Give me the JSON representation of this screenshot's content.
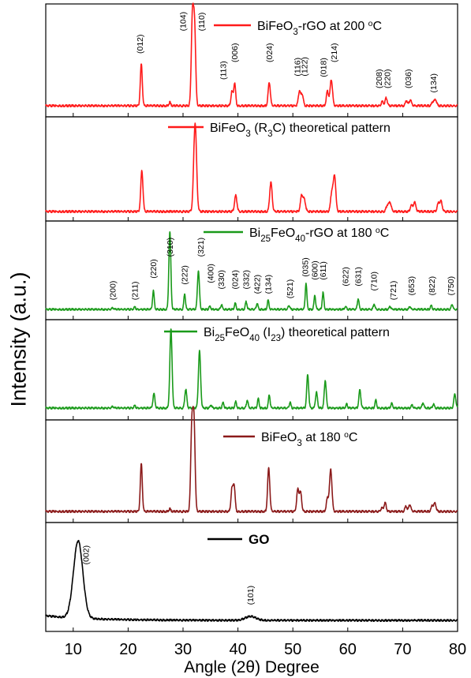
{
  "chart_data": {
    "type": "line",
    "ylabel": "Intensity (a.u.)",
    "xlabel": "Angle (2θ) Degree",
    "xlim": [
      5,
      80
    ],
    "xticks": [
      "10",
      "20",
      "30",
      "40",
      "50",
      "60",
      "70",
      "80"
    ],
    "panels": [
      {
        "legend": "BiFeO3-rGO  at 200 °C",
        "color": "#ff1a1a",
        "peaks": [
          {
            "x": 22.4,
            "h": 0.48,
            "w": 0.18
          },
          {
            "x": 27.6,
            "h": 0.04,
            "w": 0.15
          },
          {
            "x": 31.7,
            "h": 1.0,
            "w": 0.2
          },
          {
            "x": 32.1,
            "h": 0.9,
            "w": 0.2
          },
          {
            "x": 38.9,
            "h": 0.16,
            "w": 0.18
          },
          {
            "x": 39.4,
            "h": 0.26,
            "w": 0.18
          },
          {
            "x": 45.7,
            "h": 0.27,
            "w": 0.2
          },
          {
            "x": 51.2,
            "h": 0.17,
            "w": 0.2
          },
          {
            "x": 51.7,
            "h": 0.13,
            "w": 0.2
          },
          {
            "x": 56.3,
            "h": 0.17,
            "w": 0.2
          },
          {
            "x": 57.0,
            "h": 0.3,
            "w": 0.22
          },
          {
            "x": 66.3,
            "h": 0.05,
            "w": 0.2
          },
          {
            "x": 67.0,
            "h": 0.09,
            "w": 0.2
          },
          {
            "x": 70.7,
            "h": 0.06,
            "w": 0.2
          },
          {
            "x": 71.4,
            "h": 0.07,
            "w": 0.2
          },
          {
            "x": 75.5,
            "h": 0.05,
            "w": 0.2
          },
          {
            "x": 76.0,
            "h": 0.07,
            "w": 0.2
          }
        ],
        "annotations": [
          {
            "label": "(012)",
            "x": 22.2,
            "y": 0.6
          },
          {
            "label": "(104)",
            "x": 30.0,
            "y": 0.86
          },
          {
            "label": "(110)",
            "x": 33.4,
            "y": 0.86
          },
          {
            "label": "(113)",
            "x": 37.3,
            "y": 0.3
          },
          {
            "label": "(006)",
            "x": 39.4,
            "y": 0.5
          },
          {
            "label": "(024)",
            "x": 45.7,
            "y": 0.5
          },
          {
            "label": "(116)",
            "x": 50.8,
            "y": 0.34
          },
          {
            "label": "(122)",
            "x": 52.1,
            "y": 0.34
          },
          {
            "label": "(018)",
            "x": 55.6,
            "y": 0.33
          },
          {
            "label": "(214)",
            "x": 57.5,
            "y": 0.5
          },
          {
            "label": "(208)",
            "x": 65.7,
            "y": 0.2
          },
          {
            "label": "(220)",
            "x": 67.2,
            "y": 0.2
          },
          {
            "label": "(036)",
            "x": 71.0,
            "y": 0.2
          },
          {
            "label": "(134)",
            "x": 75.6,
            "y": 0.15
          }
        ]
      },
      {
        "legend": "BiFeO3 (R3C) theoretical pattern",
        "color": "#ff1a1a",
        "peaks": [
          {
            "x": 22.5,
            "h": 0.46,
            "w": 0.2
          },
          {
            "x": 32.2,
            "h": 1.0,
            "w": 0.26
          },
          {
            "x": 39.6,
            "h": 0.18,
            "w": 0.22
          },
          {
            "x": 46.0,
            "h": 0.33,
            "w": 0.22
          },
          {
            "x": 51.6,
            "h": 0.18,
            "w": 0.22
          },
          {
            "x": 52.1,
            "h": 0.13,
            "w": 0.22
          },
          {
            "x": 57.1,
            "h": 0.22,
            "w": 0.22
          },
          {
            "x": 57.6,
            "h": 0.4,
            "w": 0.22
          },
          {
            "x": 67.2,
            "h": 0.07,
            "w": 0.22
          },
          {
            "x": 67.7,
            "h": 0.1,
            "w": 0.22
          },
          {
            "x": 71.6,
            "h": 0.07,
            "w": 0.22
          },
          {
            "x": 72.2,
            "h": 0.1,
            "w": 0.22
          },
          {
            "x": 76.5,
            "h": 0.09,
            "w": 0.22
          },
          {
            "x": 77.0,
            "h": 0.11,
            "w": 0.22
          }
        ],
        "annotations": []
      },
      {
        "legend": "Bi25FeO40-rGO at 180 °C",
        "color": "#1a9a1a",
        "peaks": [
          {
            "x": 17.2,
            "h": 0.02,
            "w": 0.15
          },
          {
            "x": 21.2,
            "h": 0.03,
            "w": 0.15
          },
          {
            "x": 24.6,
            "h": 0.24,
            "w": 0.15
          },
          {
            "x": 27.6,
            "h": 1.0,
            "w": 0.18
          },
          {
            "x": 30.3,
            "h": 0.2,
            "w": 0.15
          },
          {
            "x": 32.8,
            "h": 0.5,
            "w": 0.18
          },
          {
            "x": 34.9,
            "h": 0.04,
            "w": 0.15
          },
          {
            "x": 37.0,
            "h": 0.06,
            "w": 0.15
          },
          {
            "x": 39.5,
            "h": 0.08,
            "w": 0.15
          },
          {
            "x": 41.5,
            "h": 0.1,
            "w": 0.15
          },
          {
            "x": 43.5,
            "h": 0.08,
            "w": 0.15
          },
          {
            "x": 45.5,
            "h": 0.12,
            "w": 0.15
          },
          {
            "x": 49.3,
            "h": 0.05,
            "w": 0.15
          },
          {
            "x": 52.4,
            "h": 0.34,
            "w": 0.15
          },
          {
            "x": 54.0,
            "h": 0.18,
            "w": 0.15
          },
          {
            "x": 55.5,
            "h": 0.22,
            "w": 0.15
          },
          {
            "x": 59.6,
            "h": 0.04,
            "w": 0.15
          },
          {
            "x": 61.9,
            "h": 0.14,
            "w": 0.15
          },
          {
            "x": 64.8,
            "h": 0.07,
            "w": 0.15
          },
          {
            "x": 67.7,
            "h": 0.04,
            "w": 0.15
          },
          {
            "x": 71.3,
            "h": 0.04,
            "w": 0.15
          },
          {
            "x": 75.2,
            "h": 0.05,
            "w": 0.15
          },
          {
            "x": 79.0,
            "h": 0.07,
            "w": 0.15
          }
        ],
        "annotations": [
          {
            "label": "(200)",
            "x": 17.2,
            "y": 0.12
          },
          {
            "label": "(211)",
            "x": 21.2,
            "y": 0.12
          },
          {
            "label": "(220)",
            "x": 24.6,
            "y": 0.4
          },
          {
            "label": "(310)",
            "x": 27.6,
            "y": 0.68
          },
          {
            "label": "(222)",
            "x": 30.3,
            "y": 0.32
          },
          {
            "label": "(321)",
            "x": 33.2,
            "y": 0.68
          },
          {
            "label": "(400)",
            "x": 35.0,
            "y": 0.34
          },
          {
            "label": "(330)",
            "x": 37.0,
            "y": 0.26
          },
          {
            "label": "(024)",
            "x": 39.5,
            "y": 0.26
          },
          {
            "label": "(332)",
            "x": 41.5,
            "y": 0.26
          },
          {
            "label": "(422)",
            "x": 43.5,
            "y": 0.2
          },
          {
            "label": "(134)",
            "x": 45.5,
            "y": 0.2
          },
          {
            "label": "(521)",
            "x": 49.5,
            "y": 0.14
          },
          {
            "label": "(035)",
            "x": 52.3,
            "y": 0.42
          },
          {
            "label": "(600)",
            "x": 54.0,
            "y": 0.38
          },
          {
            "label": "(611)",
            "x": 55.5,
            "y": 0.38
          },
          {
            "label": "(622)",
            "x": 59.6,
            "y": 0.3
          },
          {
            "label": "(631)",
            "x": 61.9,
            "y": 0.3
          },
          {
            "label": "(710)",
            "x": 64.8,
            "y": 0.24
          },
          {
            "label": "(721)",
            "x": 68.3,
            "y": 0.12
          },
          {
            "label": "(653)",
            "x": 71.6,
            "y": 0.18
          },
          {
            "label": "(822)",
            "x": 75.3,
            "y": 0.18
          },
          {
            "label": "(750)",
            "x": 78.8,
            "y": 0.18
          }
        ]
      },
      {
        "legend": "Bi25FeO40 (I23) theoretical pattern",
        "color": "#1a9a1a",
        "peaks": [
          {
            "x": 17.2,
            "h": 0.02,
            "w": 0.15
          },
          {
            "x": 21.2,
            "h": 0.03,
            "w": 0.15
          },
          {
            "x": 24.7,
            "h": 0.18,
            "w": 0.18
          },
          {
            "x": 27.8,
            "h": 1.0,
            "w": 0.2
          },
          {
            "x": 30.5,
            "h": 0.24,
            "w": 0.18
          },
          {
            "x": 33.0,
            "h": 0.72,
            "w": 0.2
          },
          {
            "x": 35.1,
            "h": 0.04,
            "w": 0.15
          },
          {
            "x": 37.3,
            "h": 0.07,
            "w": 0.15
          },
          {
            "x": 39.6,
            "h": 0.08,
            "w": 0.15
          },
          {
            "x": 41.7,
            "h": 0.1,
            "w": 0.15
          },
          {
            "x": 43.7,
            "h": 0.12,
            "w": 0.15
          },
          {
            "x": 45.7,
            "h": 0.17,
            "w": 0.15
          },
          {
            "x": 49.5,
            "h": 0.07,
            "w": 0.15
          },
          {
            "x": 52.7,
            "h": 0.42,
            "w": 0.18
          },
          {
            "x": 54.3,
            "h": 0.2,
            "w": 0.18
          },
          {
            "x": 55.9,
            "h": 0.35,
            "w": 0.18
          },
          {
            "x": 59.8,
            "h": 0.05,
            "w": 0.15
          },
          {
            "x": 62.2,
            "h": 0.23,
            "w": 0.18
          },
          {
            "x": 65.1,
            "h": 0.1,
            "w": 0.15
          },
          {
            "x": 68.0,
            "h": 0.06,
            "w": 0.15
          },
          {
            "x": 71.7,
            "h": 0.04,
            "w": 0.15
          },
          {
            "x": 73.7,
            "h": 0.07,
            "w": 0.15
          },
          {
            "x": 75.6,
            "h": 0.05,
            "w": 0.15
          },
          {
            "x": 79.5,
            "h": 0.18,
            "w": 0.18
          }
        ],
        "annotations": []
      },
      {
        "legend": "BiFeO3  at  180 °C",
        "color": "#8b1a1a",
        "peaks": [
          {
            "x": 22.4,
            "h": 0.55,
            "w": 0.18
          },
          {
            "x": 27.6,
            "h": 0.03,
            "w": 0.15
          },
          {
            "x": 31.6,
            "h": 0.97,
            "w": 0.2
          },
          {
            "x": 32.0,
            "h": 1.0,
            "w": 0.2
          },
          {
            "x": 38.9,
            "h": 0.25,
            "w": 0.18
          },
          {
            "x": 39.3,
            "h": 0.3,
            "w": 0.18
          },
          {
            "x": 45.6,
            "h": 0.5,
            "w": 0.2
          },
          {
            "x": 50.9,
            "h": 0.25,
            "w": 0.2
          },
          {
            "x": 51.4,
            "h": 0.22,
            "w": 0.2
          },
          {
            "x": 56.3,
            "h": 0.15,
            "w": 0.2
          },
          {
            "x": 56.9,
            "h": 0.48,
            "w": 0.22
          },
          {
            "x": 66.2,
            "h": 0.04,
            "w": 0.2
          },
          {
            "x": 66.8,
            "h": 0.1,
            "w": 0.2
          },
          {
            "x": 70.6,
            "h": 0.06,
            "w": 0.2
          },
          {
            "x": 71.3,
            "h": 0.08,
            "w": 0.2
          },
          {
            "x": 75.4,
            "h": 0.07,
            "w": 0.2
          },
          {
            "x": 75.9,
            "h": 0.09,
            "w": 0.2
          }
        ],
        "annotations": []
      },
      {
        "legend": "GO",
        "color": "#000000",
        "peaks": [
          {
            "x": 10.9,
            "h": 1.0,
            "w": 0.85
          },
          {
            "x": 42.3,
            "h": 0.05,
            "w": 1.0
          }
        ],
        "annotations": [
          {
            "label": "(002)",
            "x": 12.3,
            "y": 0.72
          },
          {
            "label": "(101)",
            "x": 42.3,
            "y": 0.2
          }
        ]
      }
    ]
  }
}
